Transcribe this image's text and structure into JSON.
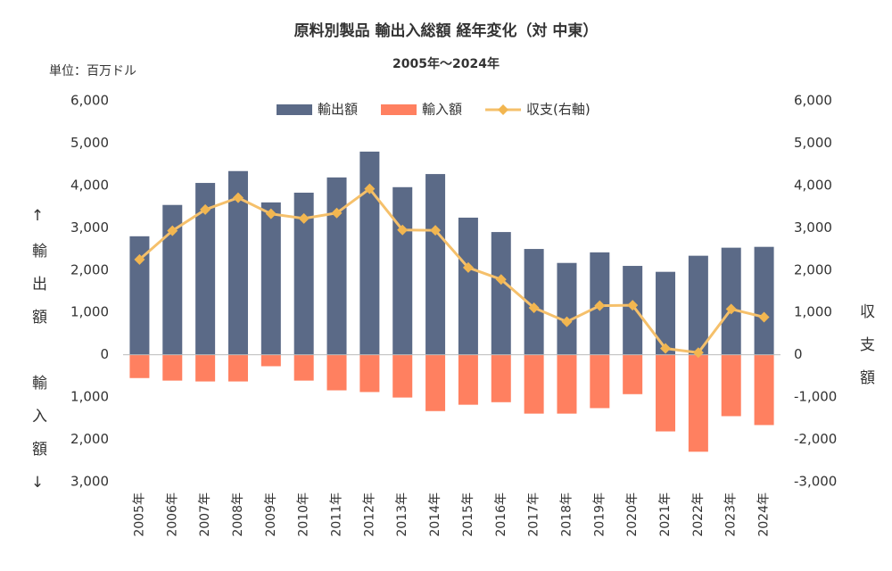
{
  "chart_data": {
    "type": "bar",
    "title": "原料別製品 輸出入総額 経年変化（対 中東）",
    "subtitle": "2005年～2024年",
    "unit_label": "単位：百万ドル",
    "y_label_upper": "↑輸出額",
    "y_label_lower": "輸入額↓",
    "y2_label": "収支額",
    "categories": [
      "2005年",
      "2006年",
      "2007年",
      "2008年",
      "2009年",
      "2010年",
      "2011年",
      "2012年",
      "2013年",
      "2014年",
      "2015年",
      "2016年",
      "2017年",
      "2018年",
      "2019年",
      "2020年",
      "2021年",
      "2022年",
      "2023年",
      "2024年"
    ],
    "series": [
      {
        "name": "輸出額",
        "type": "bar",
        "color": "#5b6a87",
        "values": [
          2800,
          3540,
          4060,
          4340,
          3600,
          3830,
          4190,
          4800,
          3960,
          4270,
          3240,
          2900,
          2500,
          2170,
          2420,
          2100,
          1960,
          2340,
          2530,
          2550
        ]
      },
      {
        "name": "輸入額",
        "type": "bar",
        "color": "#ff8060",
        "values": [
          -550,
          -610,
          -630,
          -630,
          -270,
          -610,
          -840,
          -880,
          -1010,
          -1330,
          -1180,
          -1120,
          -1390,
          -1390,
          -1260,
          -930,
          -1810,
          -2290,
          -1450,
          -1660
        ]
      },
      {
        "name": "収支(右軸)",
        "type": "line",
        "axis": "y2",
        "color": "#f5c06b",
        "values": [
          2250,
          2930,
          3430,
          3710,
          3330,
          3220,
          3350,
          3920,
          2950,
          2940,
          2060,
          1780,
          1110,
          780,
          1160,
          1170,
          150,
          50,
          1080,
          890
        ]
      }
    ],
    "ylim": [
      -3000,
      6000
    ],
    "yticks": [
      {
        "value": -3000,
        "label": "3,000"
      },
      {
        "value": -2000,
        "label": "2,000"
      },
      {
        "value": -1000,
        "label": "1,000"
      },
      0,
      {
        "value": 1000,
        "label": "1,000"
      },
      {
        "value": 2000,
        "label": "2,000"
      },
      {
        "value": 3000,
        "label": "3,000"
      },
      {
        "value": 4000,
        "label": "4,000"
      },
      {
        "value": 5000,
        "label": "5,000"
      },
      {
        "value": 6000,
        "label": "6,000"
      }
    ],
    "y2lim": [
      -3000,
      6000
    ],
    "y2ticks": [
      {
        "value": -3000,
        "label": "-3,000"
      },
      {
        "value": -2000,
        "label": "-2,000"
      },
      {
        "value": -1000,
        "label": "-1,000"
      },
      0,
      {
        "value": 1000,
        "label": "1,000"
      },
      {
        "value": 2000,
        "label": "2,000"
      },
      {
        "value": 3000,
        "label": "3,000"
      },
      {
        "value": 4000,
        "label": "4,000"
      },
      {
        "value": 5000,
        "label": "5,000"
      },
      {
        "value": 6000,
        "label": "6,000"
      }
    ],
    "negative_tick_color": "#e03a3a",
    "grid": false,
    "legend": "top"
  }
}
